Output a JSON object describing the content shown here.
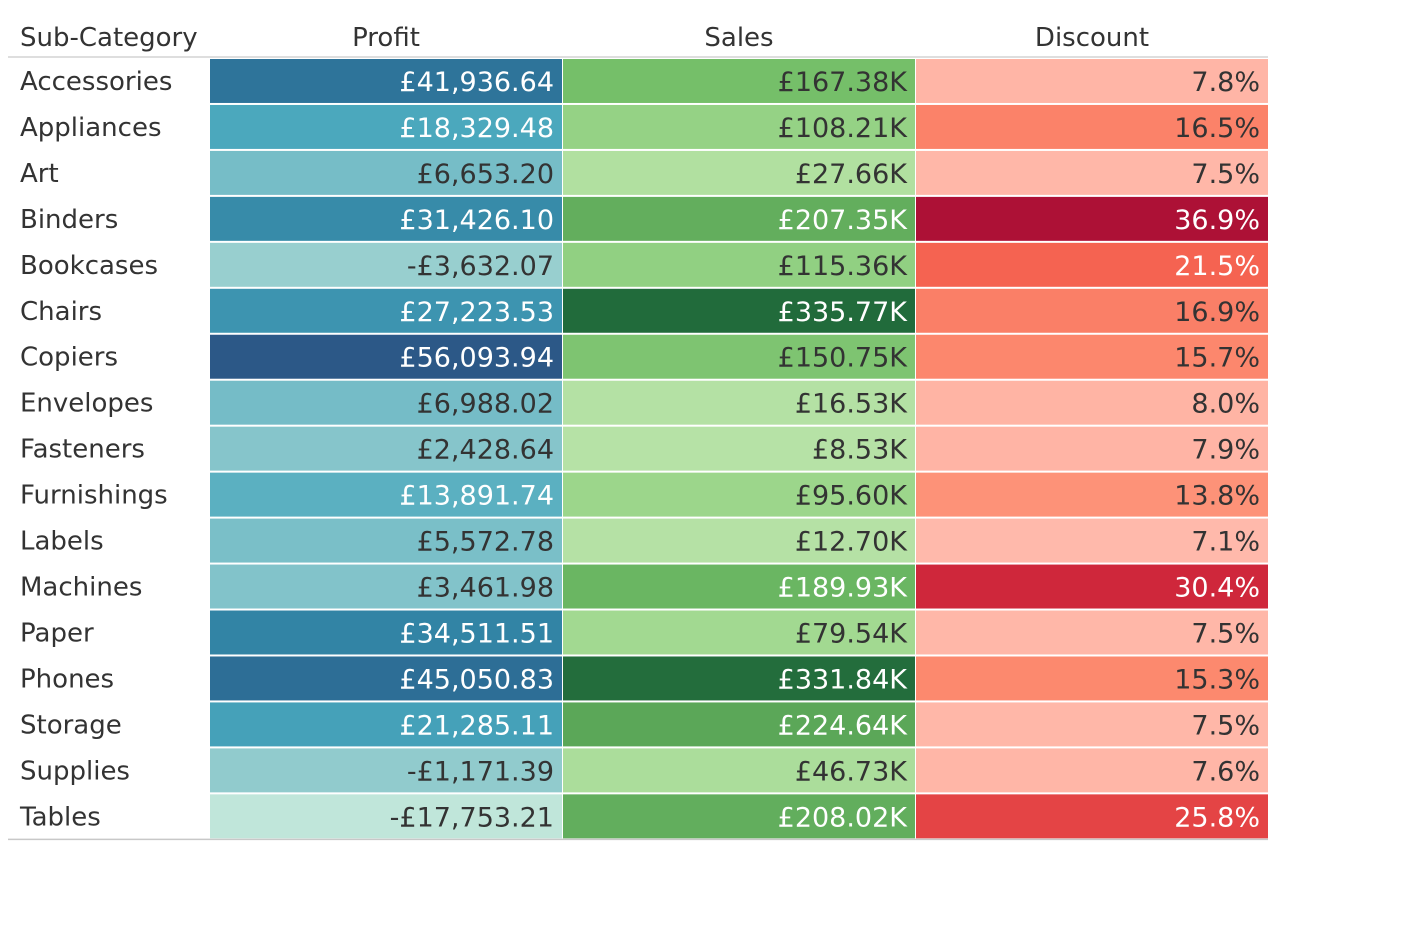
{
  "chart_data": {
    "type": "heatmap",
    "row_header": "Sub-Category",
    "columns": [
      "Profit",
      "Sales",
      "Discount"
    ],
    "rows": [
      {
        "label": "Accessories",
        "profit": 41936.64,
        "profit_text": "£41,936.64",
        "sales": 167.38,
        "sales_text": "£167.38K",
        "discount": 7.8,
        "discount_text": "7.8%"
      },
      {
        "label": "Appliances",
        "profit": 18329.48,
        "profit_text": "£18,329.48",
        "sales": 108.21,
        "sales_text": "£108.21K",
        "discount": 16.5,
        "discount_text": "16.5%"
      },
      {
        "label": "Art",
        "profit": 6653.2,
        "profit_text": "£6,653.20",
        "sales": 27.66,
        "sales_text": "£27.66K",
        "discount": 7.5,
        "discount_text": "7.5%"
      },
      {
        "label": "Binders",
        "profit": 31426.1,
        "profit_text": "£31,426.10",
        "sales": 207.35,
        "sales_text": "£207.35K",
        "discount": 36.9,
        "discount_text": "36.9%"
      },
      {
        "label": "Bookcases",
        "profit": -3632.07,
        "profit_text": "-£3,632.07",
        "sales": 115.36,
        "sales_text": "£115.36K",
        "discount": 21.5,
        "discount_text": "21.5%"
      },
      {
        "label": "Chairs",
        "profit": 27223.53,
        "profit_text": "£27,223.53",
        "sales": 335.77,
        "sales_text": "£335.77K",
        "discount": 16.9,
        "discount_text": "16.9%"
      },
      {
        "label": "Copiers",
        "profit": 56093.94,
        "profit_text": "£56,093.94",
        "sales": 150.75,
        "sales_text": "£150.75K",
        "discount": 15.7,
        "discount_text": "15.7%"
      },
      {
        "label": "Envelopes",
        "profit": 6988.02,
        "profit_text": "£6,988.02",
        "sales": 16.53,
        "sales_text": "£16.53K",
        "discount": 8.0,
        "discount_text": "8.0%"
      },
      {
        "label": "Fasteners",
        "profit": 2428.64,
        "profit_text": "£2,428.64",
        "sales": 8.53,
        "sales_text": "£8.53K",
        "discount": 7.9,
        "discount_text": "7.9%"
      },
      {
        "label": "Furnishings",
        "profit": 13891.74,
        "profit_text": "£13,891.74",
        "sales": 95.6,
        "sales_text": "£95.60K",
        "discount": 13.8,
        "discount_text": "13.8%"
      },
      {
        "label": "Labels",
        "profit": 5572.78,
        "profit_text": "£5,572.78",
        "sales": 12.7,
        "sales_text": "£12.70K",
        "discount": 7.1,
        "discount_text": "7.1%"
      },
      {
        "label": "Machines",
        "profit": 3461.98,
        "profit_text": "£3,461.98",
        "sales": 189.93,
        "sales_text": "£189.93K",
        "discount": 30.4,
        "discount_text": "30.4%"
      },
      {
        "label": "Paper",
        "profit": 34511.51,
        "profit_text": "£34,511.51",
        "sales": 79.54,
        "sales_text": "£79.54K",
        "discount": 7.5,
        "discount_text": "7.5%"
      },
      {
        "label": "Phones",
        "profit": 45050.83,
        "profit_text": "£45,050.83",
        "sales": 331.84,
        "sales_text": "£331.84K",
        "discount": 15.3,
        "discount_text": "15.3%"
      },
      {
        "label": "Storage",
        "profit": 21285.11,
        "profit_text": "£21,285.11",
        "sales": 224.64,
        "sales_text": "£224.64K",
        "discount": 7.5,
        "discount_text": "7.5%"
      },
      {
        "label": "Supplies",
        "profit": -1171.39,
        "profit_text": "-£1,171.39",
        "sales": 46.73,
        "sales_text": "£46.73K",
        "discount": 7.6,
        "discount_text": "7.6%"
      },
      {
        "label": "Tables",
        "profit": -17753.21,
        "profit_text": "-£17,753.21",
        "sales": 208.02,
        "sales_text": "£208.02K",
        "discount": 25.8,
        "discount_text": "25.8%"
      }
    ],
    "color_scales": {
      "profit": [
        "#c0e6da",
        "#8cc8cc",
        "#48a6bc",
        "#2e7da0",
        "#2c5887"
      ],
      "sales": [
        "#b6e2a6",
        "#9fd88e",
        "#72bd67",
        "#4e9b50",
        "#216b3b"
      ],
      "discount": [
        "#ffb9ab",
        "#fd8e72",
        "#f4604f",
        "#d42a3c",
        "#ad1136"
      ]
    },
    "text_colors": {
      "dark": "#333333",
      "light": "#ffffff"
    }
  }
}
